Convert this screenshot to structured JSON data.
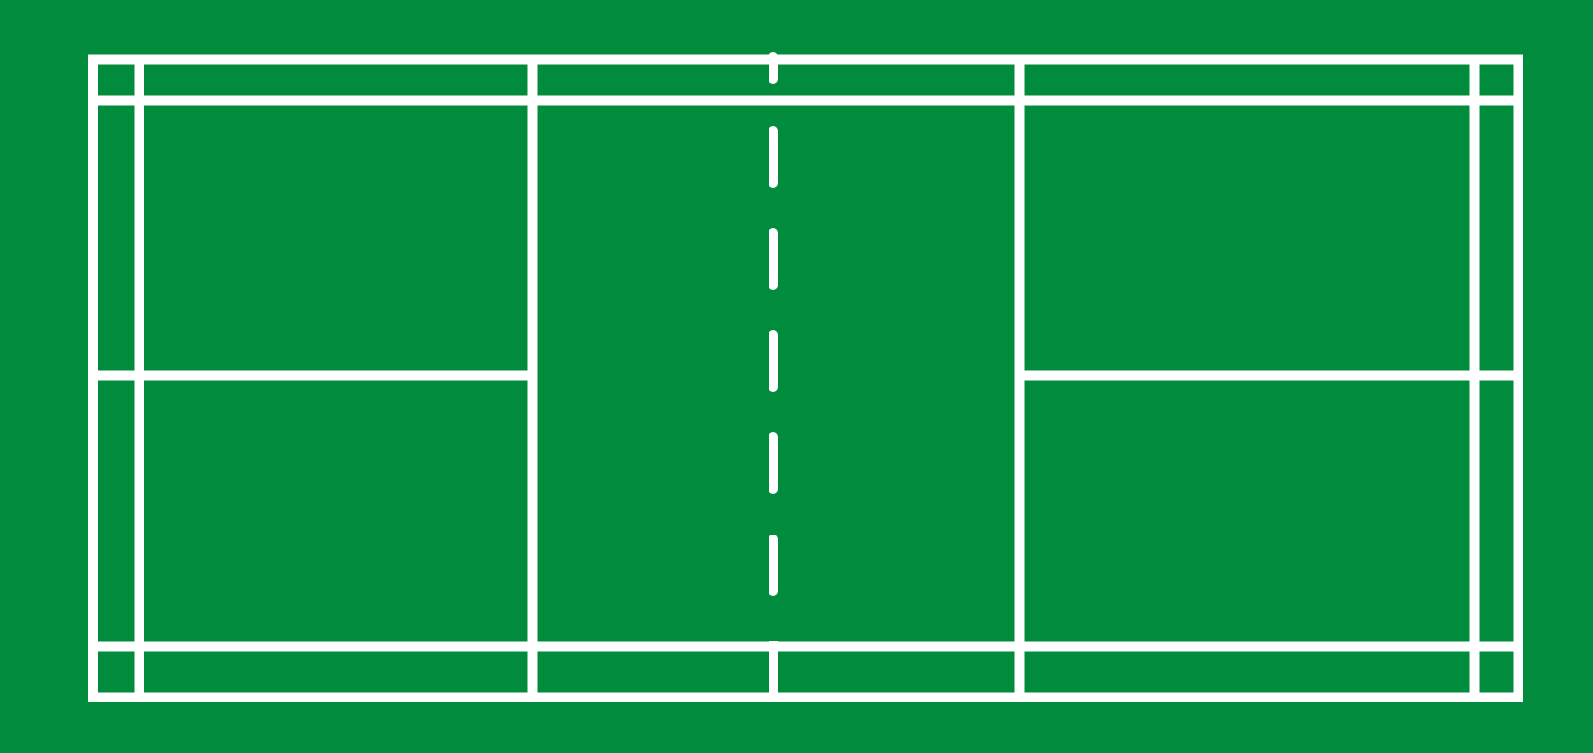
{
  "diagram": {
    "type": "badminton-court",
    "colors": {
      "surface": "#008c3c",
      "lines": "#ffffff"
    },
    "net_line_style": "dashed"
  }
}
